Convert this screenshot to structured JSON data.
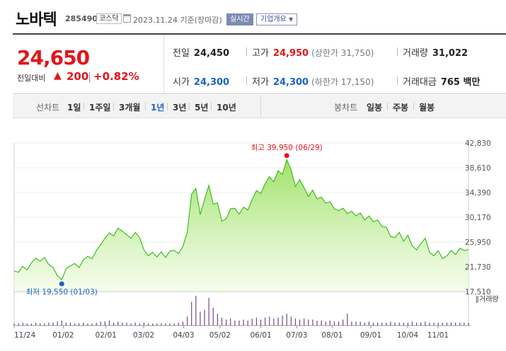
{
  "header": {
    "name": "노바텍",
    "code": "285490",
    "market": "코스닥",
    "date": "2023.11.24  기준(장마감)",
    "realtime_label": "실시간",
    "info_label": "기업개요"
  },
  "summary": {
    "price": "24,650",
    "change_label": "전일대비",
    "change_arrow": "▲",
    "change_value": "200",
    "change_sep": "|",
    "change_pct": "+0.82%",
    "prev_close_label": "전일",
    "prev_close": "24,450",
    "high_label": "고가",
    "high": "24,950",
    "upper_limit": "(상한가 31,750)",
    "volume_label": "거래량",
    "volume": "31,022",
    "open_label": "시가",
    "open": "24,300",
    "low_label": "저가",
    "low": "24,300",
    "lower_limit": "(하한가 17,150)",
    "trade_value_label": "거래대금",
    "trade_value": "765 백만"
  },
  "period_bar": {
    "line_label": "선차트",
    "line_periods": [
      "1일",
      "1주일",
      "3개월",
      "1년",
      "3년",
      "5년",
      "10년"
    ],
    "active": "1년",
    "candle_label": "봉차트",
    "candle_periods": [
      "일봉",
      "주봉",
      "월봉"
    ]
  },
  "colors": {
    "up": "#e1161b",
    "down": "#1b61c9",
    "area_fill": "#d6f5b5",
    "area_line": "#3cbf1f",
    "volume_bar": "#6f4a8f"
  },
  "chart_data": {
    "type": "area",
    "x_ticks": [
      "11/24",
      "01/02",
      "02/01",
      "03/02",
      "04/03",
      "05/02",
      "06/01",
      "07/03",
      "08/01",
      "09/01",
      "10/04",
      "11/01"
    ],
    "y_ticks": [
      "42,830",
      "38,610",
      "34,390",
      "30,170",
      "25,950",
      "21,730",
      "17,510"
    ],
    "ylim": [
      17510,
      42830
    ],
    "max_label": "최고 39,950 (06/29)",
    "min_label": "최저 19,550 (01/03)",
    "volume_label": "거래량",
    "values": [
      21000,
      20800,
      21800,
      21200,
      22400,
      23200,
      22700,
      23300,
      22100,
      21600,
      20200,
      19550,
      21400,
      21900,
      22300,
      21600,
      22900,
      23500,
      23100,
      24500,
      25500,
      26600,
      27500,
      27000,
      28300,
      27800,
      27200,
      26600,
      27600,
      26700,
      24600,
      23600,
      24200,
      23400,
      24300,
      23300,
      24400,
      24500,
      24000,
      25200,
      27600,
      34100,
      35100,
      30600,
      33200,
      35600,
      32400,
      32600,
      29500,
      29900,
      31600,
      31700,
      30700,
      31900,
      31400,
      33200,
      34700,
      34200,
      35900,
      37100,
      36200,
      38100,
      37500,
      39950,
      38300,
      35400,
      36600,
      35200,
      33700,
      34800,
      33300,
      33600,
      32600,
      32800,
      31600,
      31300,
      31700,
      30800,
      31200,
      30400,
      30900,
      29700,
      30400,
      29400,
      29700,
      28600,
      28500,
      26900,
      26700,
      27600,
      26100,
      27100,
      25300,
      24600,
      25700,
      26600,
      24200,
      23600,
      24500,
      23100,
      23600,
      24500,
      23800,
      24900,
      24500,
      24650
    ],
    "volumes": [
      2,
      2,
      3,
      2,
      2,
      3,
      2,
      2,
      3,
      3,
      4,
      5,
      3,
      3,
      2,
      2,
      3,
      2,
      2,
      3,
      4,
      4,
      5,
      3,
      4,
      3,
      3,
      2,
      3,
      2,
      3,
      2,
      2,
      2,
      2,
      2,
      2,
      2,
      3,
      4,
      9,
      24,
      30,
      14,
      16,
      28,
      18,
      12,
      8,
      6,
      7,
      5,
      5,
      6,
      5,
      7,
      8,
      6,
      8,
      9,
      7,
      8,
      10,
      12,
      9,
      7,
      6,
      7,
      6,
      6,
      5,
      5,
      4,
      5,
      4,
      4,
      6,
      12,
      4,
      4,
      4,
      3,
      4,
      3,
      3,
      3,
      3,
      4,
      3,
      3,
      3,
      3,
      4,
      3,
      3,
      4,
      3,
      3,
      3,
      3,
      3,
      3,
      3,
      3,
      3,
      3
    ]
  }
}
